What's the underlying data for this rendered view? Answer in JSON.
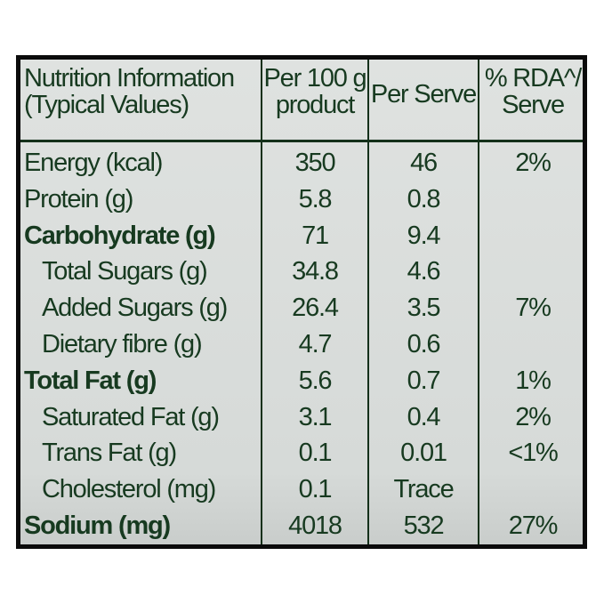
{
  "header": {
    "col1": [
      "Nutrition Information",
      "(Typical Values)"
    ],
    "col2": [
      "Per 100 g",
      "product"
    ],
    "col3": "Per Serve",
    "col4": [
      "% RDA^/",
      "Serve"
    ]
  },
  "rows": [
    {
      "label": "Energy (kcal)",
      "per100": "350",
      "serve": "46",
      "rda": "2%",
      "bold": false,
      "indent": false
    },
    {
      "label": "Protein (g)",
      "per100": "5.8",
      "serve": "0.8",
      "rda": "",
      "bold": false,
      "indent": false
    },
    {
      "label": "Carbohydrate (g)",
      "per100": "71",
      "serve": "9.4",
      "rda": "",
      "bold": true,
      "indent": false
    },
    {
      "label": "Total Sugars (g)",
      "per100": "34.8",
      "serve": "4.6",
      "rda": "",
      "bold": false,
      "indent": true
    },
    {
      "label": "Added Sugars (g)",
      "per100": "26.4",
      "serve": "3.5",
      "rda": "7%",
      "bold": false,
      "indent": true
    },
    {
      "label": "Dietary fibre (g)",
      "per100": "4.7",
      "serve": "0.6",
      "rda": "",
      "bold": false,
      "indent": true
    },
    {
      "label": "Total Fat (g)",
      "per100": "5.6",
      "serve": "0.7",
      "rda": "1%",
      "bold": true,
      "indent": false
    },
    {
      "label": "Saturated Fat (g)",
      "per100": "3.1",
      "serve": "0.4",
      "rda": "2%",
      "bold": false,
      "indent": true
    },
    {
      "label": "Trans Fat (g)",
      "per100": "0.1",
      "serve": "0.01",
      "rda": "<1%",
      "bold": false,
      "indent": true
    },
    {
      "label": "Cholesterol (mg)",
      "per100": "0.1",
      "serve": "Trace",
      "rda": "",
      "bold": false,
      "indent": true
    },
    {
      "label": "Sodium (mg)",
      "per100": "4018",
      "serve": "532",
      "rda": "27%",
      "bold": true,
      "indent": false
    }
  ],
  "colors": {
    "text": "#173a20",
    "background": "#dcdfdd",
    "border": "#0b0b0b"
  }
}
